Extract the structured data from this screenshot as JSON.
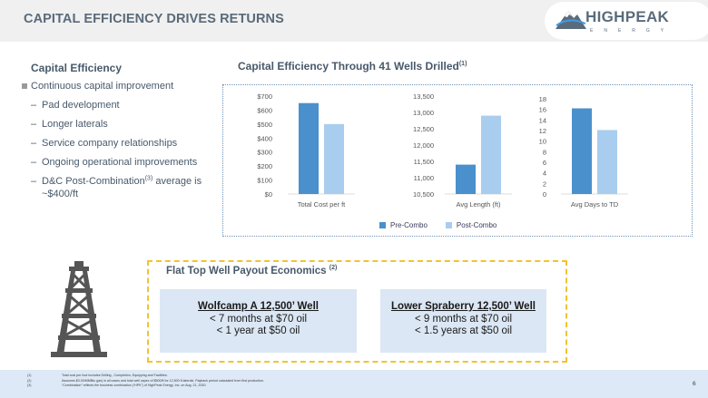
{
  "header": {
    "title": "CAPITAL EFFICIENCY DRIVES RETURNS",
    "logo_word": "HIGHPEAK",
    "logo_sub": "ENERGY"
  },
  "left": {
    "section_title": "Capital Efficiency",
    "main_bullet": "Continuous capital improvement",
    "sub_bullets": {
      "pad": "Pad development",
      "laterals": "Longer laterals",
      "service": "Service company relationships",
      "ongoing": "Ongoing operational improvements",
      "dc_text": "D&C Post-Combination",
      "dc_sup": "(3)",
      "dc_tail": " average is ~$400/ft"
    }
  },
  "charts_header": {
    "title": "Capital Efficiency Through 41 Wells Drilled",
    "sup": "(1)"
  },
  "chart_data": [
    {
      "type": "bar",
      "categories": [
        "Total Cost per ft"
      ],
      "series": [
        {
          "name": "Pre-Combo",
          "values": [
            650
          ]
        },
        {
          "name": "Post-Combo",
          "values": [
            500
          ]
        }
      ],
      "ylim": [
        0,
        700
      ],
      "yticks": [
        "$0",
        "$100",
        "$200",
        "$300",
        "$400",
        "$500",
        "$600",
        "$700"
      ],
      "ytick_values": [
        0,
        100,
        200,
        300,
        400,
        500,
        600,
        700
      ],
      "xlabel": "Total Cost per ft"
    },
    {
      "type": "bar",
      "categories": [
        "Avg Length (ft)"
      ],
      "series": [
        {
          "name": "Pre-Combo",
          "values": [
            11400
          ]
        },
        {
          "name": "Post-Combo",
          "values": [
            12900
          ]
        }
      ],
      "ylim": [
        10500,
        13500
      ],
      "yticks": [
        "10,500",
        "11,000",
        "11,500",
        "12,000",
        "12,500",
        "13,000",
        "13,500"
      ],
      "ytick_values": [
        10500,
        11000,
        11500,
        12000,
        12500,
        13000,
        13500
      ],
      "xlabel": "Avg Length (ft)"
    },
    {
      "type": "bar",
      "categories": [
        "Avg Days to TD"
      ],
      "series": [
        {
          "name": "Pre-Combo",
          "values": [
            16.2
          ]
        },
        {
          "name": "Post-Combo",
          "values": [
            12.1
          ]
        }
      ],
      "ylim": [
        0,
        18
      ],
      "yticks": [
        "0",
        "2",
        "4",
        "6",
        "8",
        "10",
        "12",
        "14",
        "16",
        "18"
      ],
      "ytick_values": [
        0,
        2,
        4,
        6,
        8,
        10,
        12,
        14,
        16,
        18
      ],
      "xlabel": "Avg Days to TD"
    }
  ],
  "legend": {
    "pre": "Pre-Combo",
    "post": "Post-Combo"
  },
  "colors": {
    "pre": "#4a90cc",
    "post": "#a9cdee",
    "accent_dash": "#f2c32e",
    "card_fill": "#dbe7f4"
  },
  "payout": {
    "title": "Flat Top Well Payout Economics",
    "sup": "(2)",
    "wells": [
      {
        "name": "Wolfcamp A 12,500’ Well",
        "line1": "< 7 months at $70 oil",
        "line2": "< 1 year at $50 oil"
      },
      {
        "name": "Lower Spraberry  12,500’ Well",
        "line1": "< 9 months at $70 oil",
        "line2": "< 1.5 years at $50 oil"
      }
    ]
  },
  "footnotes": [
    {
      "num": "(1)",
      "text": "Total cost per foot includes Drilling , Completion, Equipping and Facilities."
    },
    {
      "num": "(2)",
      "text": "Assumes $3.00/MMBtu gas) in all cases and total well capex of $500/ft for 12,500 ft laterals. Payback period calculated from first production."
    },
    {
      "num": "(3)",
      "text": "“Combination” reflects the business combination (“HPK”) of HighPeak Energy, Inc. on Aug. 21, 2020."
    }
  ],
  "page_number": "6"
}
